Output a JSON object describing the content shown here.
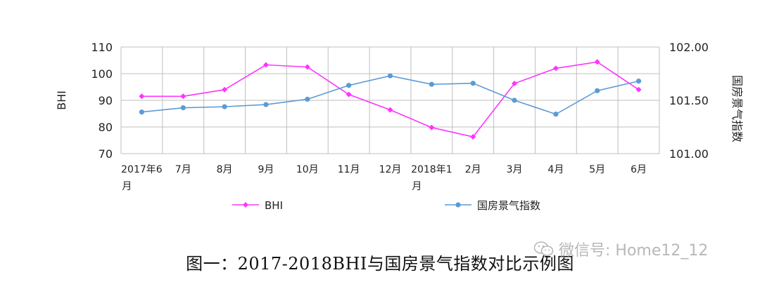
{
  "chart_data": {
    "type": "line",
    "categories": [
      [
        "2017年6",
        "月"
      ],
      [
        "7月"
      ],
      [
        "8月"
      ],
      [
        "9月"
      ],
      [
        "10月"
      ],
      [
        "11月"
      ],
      [
        "12月"
      ],
      [
        "2018年1",
        "月"
      ],
      [
        "2月"
      ],
      [
        "3月"
      ],
      [
        "4月"
      ],
      [
        "5月"
      ],
      [
        "6月"
      ]
    ],
    "ylabel_left": "BHI",
    "ylabel_right": "国房景气指数",
    "ylim_left": [
      70,
      110
    ],
    "yticks_left": [
      "70",
      "80",
      "90",
      "100",
      "110"
    ],
    "ylim_right": [
      101.0,
      102.0
    ],
    "yticks_right": [
      "101.00",
      "101.50",
      "102.00"
    ],
    "grid": true,
    "legend_position": "bottom",
    "series": [
      {
        "name": "BHI",
        "axis": "left",
        "color": "#ff33ff",
        "values": [
          91.5,
          91.5,
          94,
          103.3,
          102.5,
          92.2,
          86.4,
          79.8,
          76.3,
          96.3,
          102,
          104.4,
          94
        ]
      },
      {
        "name": "国房景气指数",
        "axis": "right",
        "color": "#5b9bd5",
        "values": [
          101.39,
          101.43,
          101.44,
          101.46,
          101.51,
          101.64,
          101.73,
          101.65,
          101.66,
          101.5,
          101.37,
          101.59,
          101.68
        ]
      }
    ]
  },
  "caption": "图一：2017-2018BHI与国房景气指数对比示例图",
  "watermark": "微信号: Home12_12"
}
